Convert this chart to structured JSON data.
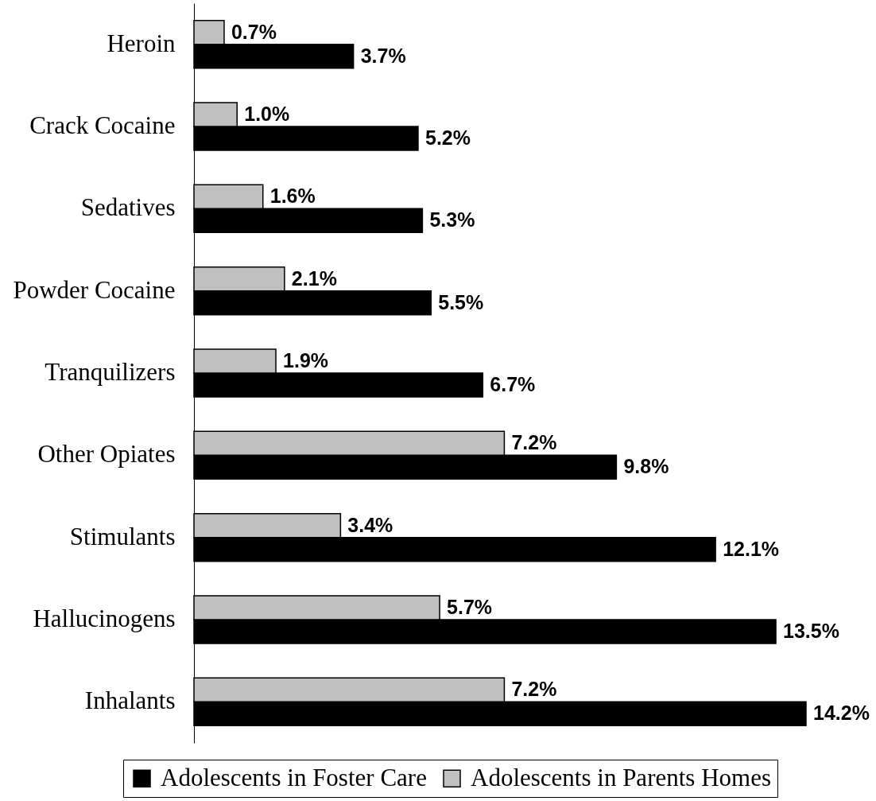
{
  "chart_data": {
    "type": "bar",
    "orientation": "horizontal",
    "categories": [
      "Heroin",
      "Crack Cocaine",
      "Sedatives",
      "Powder Cocaine",
      "Tranquilizers",
      "Other Opiates",
      "Stimulants",
      "Hallucinogens",
      "Inhalants"
    ],
    "series": [
      {
        "name": "Adolescents in Foster Care",
        "color": "#000000",
        "values": [
          3.7,
          5.2,
          5.3,
          5.5,
          6.7,
          9.8,
          12.1,
          13.5,
          14.2
        ],
        "value_labels": [
          "3.7%",
          "5.2%",
          "5.3%",
          "5.5%",
          "6.7%",
          "9.8%",
          "12.1%",
          "13.5%",
          "14.2%"
        ]
      },
      {
        "name": "Adolescents in Parents Homes",
        "color": "#c0c0c0",
        "values": [
          0.7,
          1.0,
          1.6,
          2.1,
          1.9,
          7.2,
          3.4,
          5.7,
          7.2
        ],
        "value_labels": [
          "0.7%",
          "1.0%",
          "1.6%",
          "2.1%",
          "1.9%",
          "7.2%",
          "3.4%",
          "5.7%",
          "7.2%"
        ]
      }
    ],
    "legend": "bottom"
  }
}
